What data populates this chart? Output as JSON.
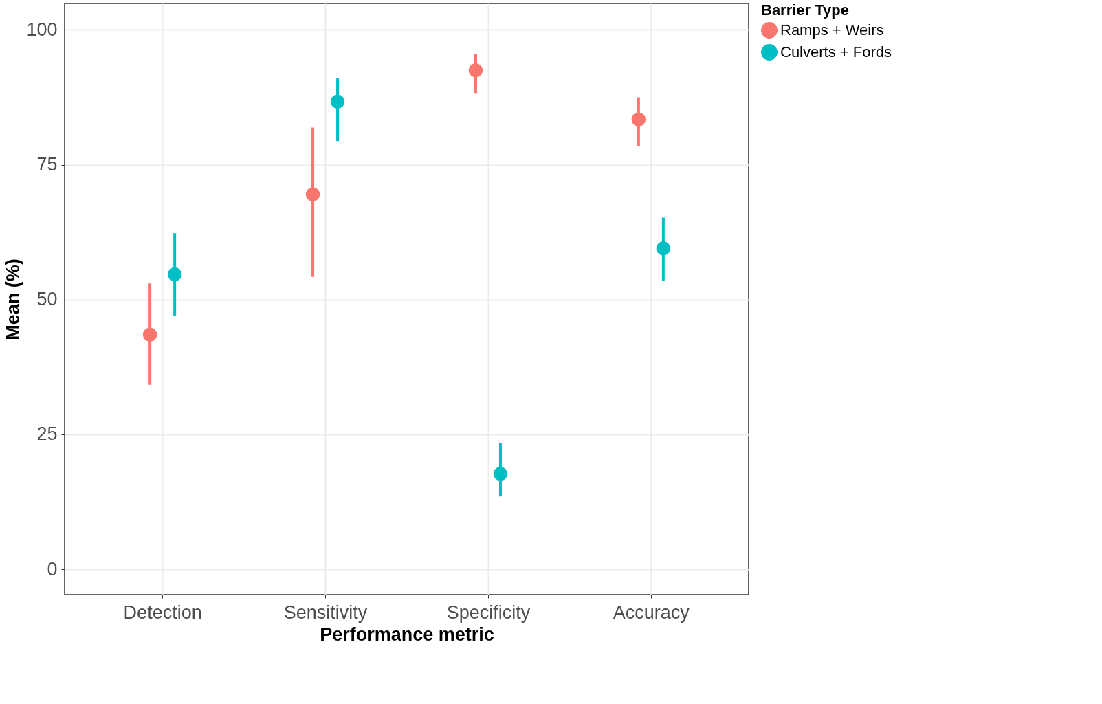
{
  "chart_data": {
    "type": "scatter",
    "xlabel": "Performance metric",
    "ylabel": "Mean (%)",
    "legend_title": "Barrier Type",
    "categories": [
      "Detection",
      "Sensitivity",
      "Specificity",
      "Accuracy"
    ],
    "series": [
      {
        "name": "Ramps + Weirs",
        "color": "#f8766d",
        "values": [
          43.5,
          69.5,
          92.5,
          83.4
        ],
        "errors": [
          [
            34.2,
            53.0
          ],
          [
            54.2,
            81.9
          ],
          [
            88.3,
            95.6
          ],
          [
            78.4,
            87.5
          ]
        ]
      },
      {
        "name": "Culverts + Fords",
        "color": "#00bfc4",
        "values": [
          54.7,
          86.7,
          17.7,
          59.5
        ],
        "errors": [
          [
            47.0,
            62.3
          ],
          [
            79.4,
            91.0
          ],
          [
            13.5,
            23.4
          ],
          [
            53.5,
            65.2
          ]
        ]
      }
    ],
    "ylim": [
      -4.7,
      104.9
    ],
    "yticks": [
      0,
      25,
      50,
      75,
      100
    ],
    "grid": true,
    "legend": "right",
    "marker": "circle"
  }
}
